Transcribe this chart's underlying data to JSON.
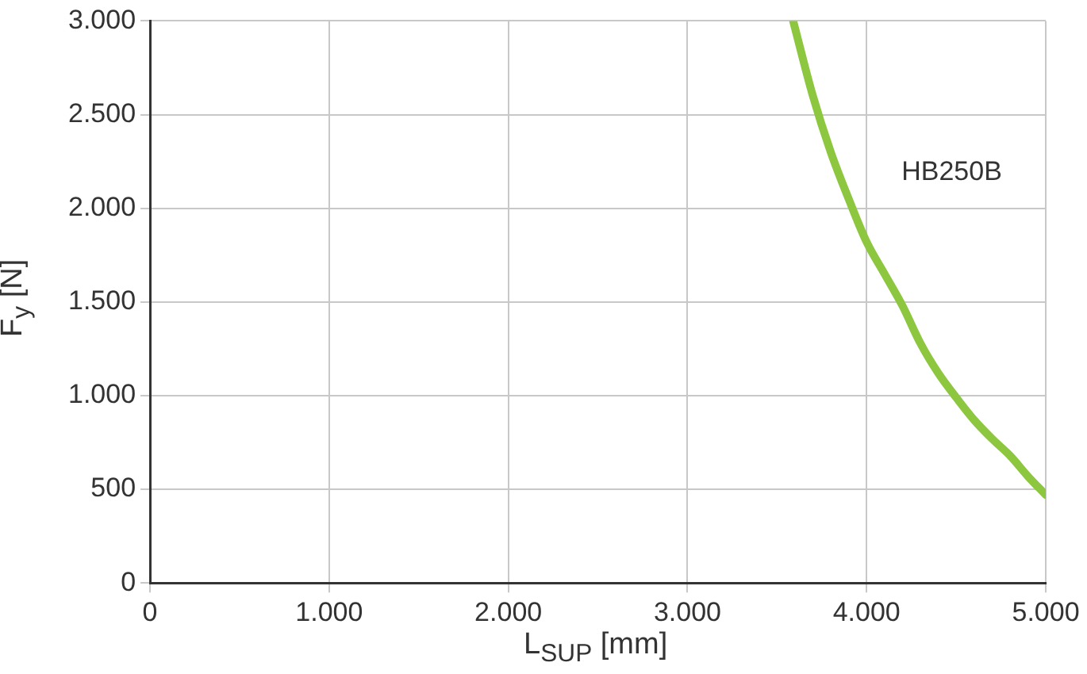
{
  "chart_data": {
    "type": "line",
    "xlabel": "L$_{SUP}$ [mm]",
    "ylabel": "F$_{y}$ [N]",
    "xlim": [
      0,
      5000
    ],
    "ylim": [
      0,
      3000
    ],
    "xticks": [
      0,
      {
        "value": 1000,
        "label": "1.000"
      },
      {
        "value": 2000,
        "label": "2.000"
      },
      {
        "value": 3000,
        "label": "3.000"
      },
      {
        "value": 4000,
        "label": "4.000"
      },
      {
        "value": 5000,
        "label": "5.000"
      }
    ],
    "yticks": [
      0,
      500,
      {
        "value": 1000,
        "label": "1.000"
      },
      {
        "value": 1500,
        "label": "1.500"
      },
      {
        "value": 2000,
        "label": "2.000"
      },
      {
        "value": 2500,
        "label": "2.500"
      },
      {
        "value": 3000,
        "label": "3.000"
      }
    ],
    "grid": true,
    "legend": false,
    "marker": "none",
    "line_style": "solid",
    "series": [
      {
        "name": "HB250B",
        "color": "#8dc63f",
        "x": [
          3590,
          3700,
          3800,
          3900,
          4000,
          4100,
          4200,
          4300,
          4400,
          4500,
          4600,
          4700,
          4800,
          4900,
          5000
        ],
        "values": [
          3000,
          2600,
          2300,
          2050,
          1820,
          1650,
          1480,
          1280,
          1120,
          990,
          870,
          770,
          680,
          570,
          470
        ]
      }
    ]
  }
}
